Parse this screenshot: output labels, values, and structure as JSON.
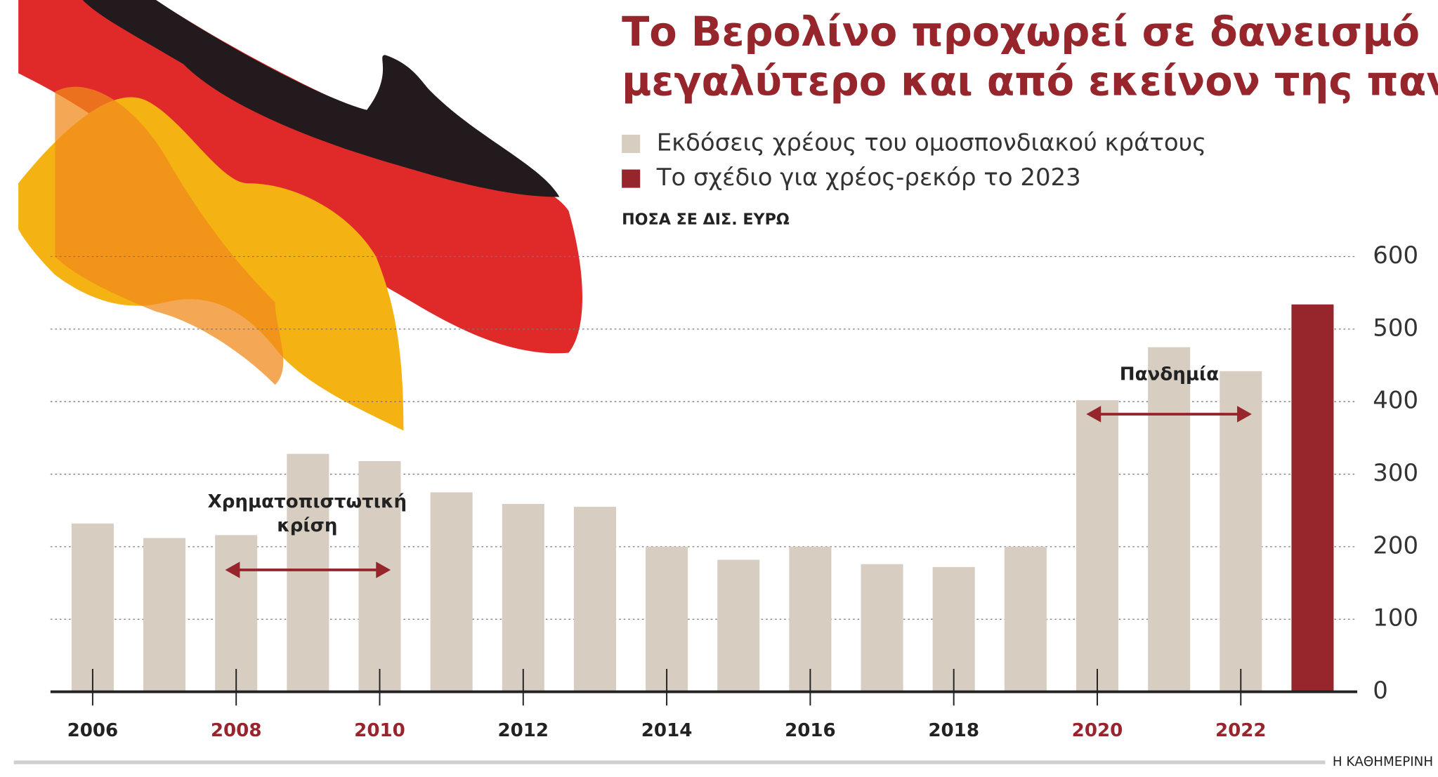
{
  "chart_data": {
    "type": "bar",
    "title": [
      "Το Βερολίνο προχωρεί σε δανεισμό",
      "μεγαλύτερο και από εκείνον της πανδημίας"
    ],
    "subtitle": "ΠΟΣΑ ΣΕ ΔΙΣ. ΕΥΡΩ",
    "source": "Η ΚΑΘΗΜΕΡΙΝΗ",
    "categories": [
      "2006",
      null,
      "2008",
      null,
      "2010",
      null,
      "2012",
      null,
      "2014",
      null,
      "2016",
      null,
      "2018",
      null,
      "2020",
      null,
      "2022",
      null
    ],
    "category_label_colors": [
      "#222222",
      null,
      "#96262c",
      null,
      "#96262c",
      null,
      "#222222",
      null,
      "#222222",
      null,
      "#222222",
      null,
      "#222222",
      null,
      "#96262c",
      null,
      "#96262c",
      null
    ],
    "series": [
      {
        "name": "Εκδόσεις χρέους του ομοσπονδιακού κράτους",
        "color": "#d8cdc1",
        "values": [
          232,
          212,
          216,
          328,
          318,
          275,
          259,
          255,
          200,
          182,
          200,
          176,
          172,
          200,
          402,
          475,
          442,
          null
        ]
      },
      {
        "name": "Το σχέδιο για χρέος-ρεκόρ το 2023",
        "color": "#96262c",
        "values": [
          null,
          null,
          null,
          null,
          null,
          null,
          null,
          null,
          null,
          null,
          null,
          null,
          null,
          null,
          null,
          null,
          null,
          534
        ]
      }
    ],
    "annotations": [
      [
        "Χρηματοπιστωτική",
        "κρίση"
      ],
      [
        "Πανδημία"
      ]
    ],
    "ylim": [
      0,
      600
    ],
    "yticks": [
      0,
      100,
      200,
      300,
      400,
      500,
      600
    ],
    "grid": true
  }
}
